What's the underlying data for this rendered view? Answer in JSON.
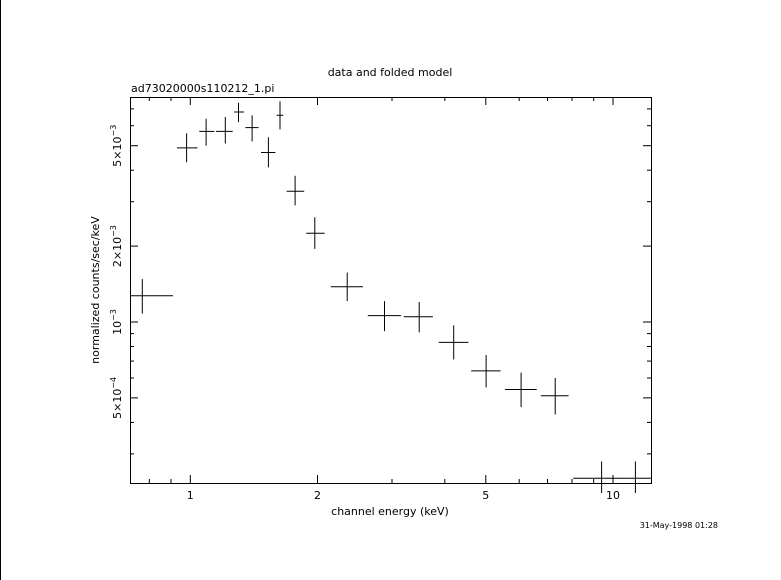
{
  "chart_data": {
    "type": "scatter",
    "title": "data and folded model",
    "subtitle": "ad73020000s110212_1.pi",
    "xlabel": "channel energy (keV)",
    "ylabel": "normalized counts/sec/keV",
    "timestamp": "31-May-1998 01:28",
    "xscale": "log",
    "yscale": "log",
    "xlim": [
      0.72,
      12.3
    ],
    "ylim": [
      0.00023,
      0.0078
    ],
    "x_ticks": [
      {
        "value": 1,
        "label": "1"
      },
      {
        "value": 2,
        "label": "2"
      },
      {
        "value": 5,
        "label": "5"
      },
      {
        "value": 10,
        "label": "10"
      }
    ],
    "y_ticks": [
      {
        "value": 0.0005,
        "mant": "5×10",
        "exp": "−4"
      },
      {
        "value": 0.001,
        "mant": "10",
        "exp": "−3"
      },
      {
        "value": 0.002,
        "mant": "2×10",
        "exp": "−3"
      },
      {
        "value": 0.005,
        "mant": "5×10",
        "exp": "−3"
      }
    ],
    "series": [
      {
        "points": [
          {
            "x": 0.77,
            "xlo": 0.72,
            "xhi": 0.91,
            "y": 0.00127,
            "ylo": 0.00108,
            "yhi": 0.00148
          },
          {
            "x": 0.98,
            "xlo": 0.93,
            "xhi": 1.04,
            "y": 0.0049,
            "ylo": 0.0043,
            "yhi": 0.0056
          },
          {
            "x": 1.09,
            "xlo": 1.05,
            "xhi": 1.14,
            "y": 0.0057,
            "ylo": 0.005,
            "yhi": 0.0064
          },
          {
            "x": 1.21,
            "xlo": 1.15,
            "xhi": 1.26,
            "y": 0.0057,
            "ylo": 0.0051,
            "yhi": 0.0065
          },
          {
            "x": 1.3,
            "xlo": 1.27,
            "xhi": 1.34,
            "y": 0.0068,
            "ylo": 0.0062,
            "yhi": 0.0074
          },
          {
            "x": 1.4,
            "xlo": 1.35,
            "xhi": 1.45,
            "y": 0.0059,
            "ylo": 0.0052,
            "yhi": 0.0066
          },
          {
            "x": 1.53,
            "xlo": 1.47,
            "xhi": 1.59,
            "y": 0.0047,
            "ylo": 0.0041,
            "yhi": 0.0054
          },
          {
            "x": 1.63,
            "xlo": 1.6,
            "xhi": 1.66,
            "y": 0.0066,
            "ylo": 0.0058,
            "yhi": 0.0075
          },
          {
            "x": 1.77,
            "xlo": 1.69,
            "xhi": 1.86,
            "y": 0.0033,
            "ylo": 0.0029,
            "yhi": 0.0038
          },
          {
            "x": 1.97,
            "xlo": 1.88,
            "xhi": 2.08,
            "y": 0.00225,
            "ylo": 0.00195,
            "yhi": 0.0026
          },
          {
            "x": 2.35,
            "xlo": 2.15,
            "xhi": 2.56,
            "y": 0.00138,
            "ylo": 0.00121,
            "yhi": 0.00157
          },
          {
            "x": 2.88,
            "xlo": 2.63,
            "xhi": 3.15,
            "y": 0.00106,
            "ylo": 0.00092,
            "yhi": 0.00121
          },
          {
            "x": 3.48,
            "xlo": 3.2,
            "xhi": 3.75,
            "y": 0.00105,
            "ylo": 0.00091,
            "yhi": 0.0012
          },
          {
            "x": 4.2,
            "xlo": 3.87,
            "xhi": 4.55,
            "y": 0.00083,
            "ylo": 0.00071,
            "yhi": 0.00097
          },
          {
            "x": 5.01,
            "xlo": 4.62,
            "xhi": 5.42,
            "y": 0.00064,
            "ylo": 0.00055,
            "yhi": 0.00074
          },
          {
            "x": 6.06,
            "xlo": 5.55,
            "xhi": 6.6,
            "y": 0.00054,
            "ylo": 0.00046,
            "yhi": 0.00063
          },
          {
            "x": 7.3,
            "xlo": 6.75,
            "xhi": 7.85,
            "y": 0.00051,
            "ylo": 0.00043,
            "yhi": 0.0006
          },
          {
            "x": 9.4,
            "xlo": 8.05,
            "xhi": 10.9,
            "y": 0.00024,
            "ylo": 0.00021,
            "yhi": 0.00028
          },
          {
            "x": 11.3,
            "xlo": 10.9,
            "xhi": 12.3,
            "y": 0.00024,
            "ylo": 0.00021,
            "yhi": 0.00028
          }
        ]
      }
    ],
    "grid": false,
    "legend": "none"
  }
}
